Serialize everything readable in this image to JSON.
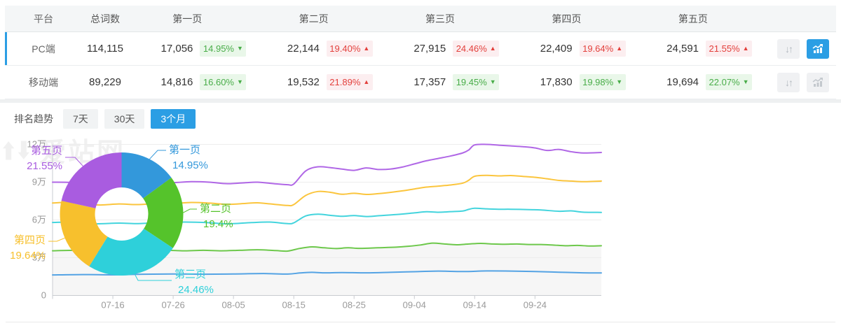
{
  "table": {
    "columns": [
      "平台",
      "总词数",
      "第一页",
      "第二页",
      "第三页",
      "第四页",
      "第五页"
    ],
    "rows": [
      {
        "platform": "PC端",
        "total": "114,115",
        "selected": true,
        "pages": [
          {
            "value": "17,056",
            "pct": "14.95%",
            "dir": "down"
          },
          {
            "value": "22,144",
            "pct": "19.40%",
            "dir": "up"
          },
          {
            "value": "27,915",
            "pct": "24.46%",
            "dir": "up"
          },
          {
            "value": "22,409",
            "pct": "19.64%",
            "dir": "up"
          },
          {
            "value": "24,591",
            "pct": "21.55%",
            "dir": "up"
          }
        ]
      },
      {
        "platform": "移动端",
        "total": "89,229",
        "selected": false,
        "pages": [
          {
            "value": "14,816",
            "pct": "16.60%",
            "dir": "down"
          },
          {
            "value": "19,532",
            "pct": "21.89%",
            "dir": "up"
          },
          {
            "value": "17,357",
            "pct": "19.45%",
            "dir": "down"
          },
          {
            "value": "17,830",
            "pct": "19.98%",
            "dir": "down"
          },
          {
            "value": "19,694",
            "pct": "22.07%",
            "dir": "down"
          }
        ]
      }
    ]
  },
  "trend": {
    "label": "排名趋势",
    "tabs": [
      {
        "label": "7天",
        "active": false
      },
      {
        "label": "30天",
        "active": false
      },
      {
        "label": "3个月",
        "active": true
      }
    ]
  },
  "watermark_text": "爱站网",
  "colors": {
    "accent_blue": "#2b9ee4",
    "badge_down_text": "#49ad49",
    "badge_up_text": "#e3403c",
    "axis": "#c9ccd0",
    "grid": "#ededed",
    "tick_label": "#999999",
    "area_fill": "#f6f6f6"
  },
  "chart_data": [
    {
      "type": "line",
      "title": "排名趋势(3个月)",
      "xlim": [
        0,
        91
      ],
      "xticks": [
        {
          "x": 10,
          "label": "07-16"
        },
        {
          "x": 20,
          "label": "07-26"
        },
        {
          "x": 30,
          "label": "08-05"
        },
        {
          "x": 40,
          "label": "08-15"
        },
        {
          "x": 50,
          "label": "08-25"
        },
        {
          "x": 60,
          "label": "09-04"
        },
        {
          "x": 70,
          "label": "09-14"
        },
        {
          "x": 80,
          "label": "09-24"
        }
      ],
      "ylim": [
        0,
        120000
      ],
      "yticks": [
        {
          "y": 0,
          "label": "0"
        },
        {
          "y": 30000,
          "label": "3万"
        },
        {
          "y": 60000,
          "label": "6万"
        },
        {
          "y": 90000,
          "label": "9万"
        },
        {
          "y": 120000,
          "label": "12万"
        }
      ],
      "grid": true,
      "legend": "none",
      "series": [
        {
          "name": "green-line",
          "color": "#6dc84b",
          "area_fill": "#f6f6f6",
          "points": [
            [
              0,
              35500
            ],
            [
              4,
              35900
            ],
            [
              7,
              34900
            ],
            [
              10,
              35400
            ],
            [
              13,
              35000
            ],
            [
              16,
              35500
            ],
            [
              19,
              35900
            ],
            [
              22,
              35500
            ],
            [
              25,
              35900
            ],
            [
              28,
              35500
            ],
            [
              31,
              35900
            ],
            [
              34,
              36300
            ],
            [
              37,
              35700
            ],
            [
              39,
              35300
            ],
            [
              41,
              37400
            ],
            [
              43,
              38600
            ],
            [
              45,
              37900
            ],
            [
              47,
              37300
            ],
            [
              49,
              37900
            ],
            [
              51,
              37400
            ],
            [
              54,
              37900
            ],
            [
              57,
              38400
            ],
            [
              59,
              39100
            ],
            [
              61,
              40100
            ],
            [
              63,
              41600
            ],
            [
              65,
              40900
            ],
            [
              67,
              40300
            ],
            [
              69,
              40900
            ],
            [
              71,
              41400
            ],
            [
              73,
              40900
            ],
            [
              75,
              40700
            ],
            [
              77,
              40900
            ],
            [
              79,
              40500
            ],
            [
              81,
              40500
            ],
            [
              83,
              40100
            ],
            [
              85,
              39500
            ],
            [
              87,
              39800
            ],
            [
              89,
              39300
            ],
            [
              91,
              39500
            ]
          ]
        },
        {
          "name": "purple-line",
          "color": "#b067e6",
          "points": [
            [
              0,
              90000
            ],
            [
              3,
              89800
            ],
            [
              5,
              88400
            ],
            [
              8,
              87900
            ],
            [
              11,
              88800
            ],
            [
              14,
              88400
            ],
            [
              17,
              89200
            ],
            [
              20,
              89600
            ],
            [
              23,
              90400
            ],
            [
              26,
              90000
            ],
            [
              29,
              88800
            ],
            [
              32,
              89600
            ],
            [
              34,
              90000
            ],
            [
              37,
              88700
            ],
            [
              39,
              88000
            ],
            [
              40,
              88600
            ],
            [
              42,
              99000
            ],
            [
              44,
              102200
            ],
            [
              46,
              101600
            ],
            [
              48,
              100400
            ],
            [
              50,
              99400
            ],
            [
              52,
              101300
            ],
            [
              54,
              100100
            ],
            [
              56,
              100400
            ],
            [
              58,
              102000
            ],
            [
              60,
              104500
            ],
            [
              62,
              107000
            ],
            [
              64,
              108900
            ],
            [
              66,
              110800
            ],
            [
              68,
              113200
            ],
            [
              69,
              115500
            ],
            [
              70,
              119600
            ],
            [
              72,
              120000
            ],
            [
              74,
              119400
            ],
            [
              76,
              118800
            ],
            [
              78,
              118200
            ],
            [
              80,
              117200
            ],
            [
              82,
              115200
            ],
            [
              84,
              116000
            ],
            [
              86,
              114200
            ],
            [
              88,
              113200
            ],
            [
              91,
              113600
            ]
          ]
        },
        {
          "name": "yellow-line",
          "color": "#fbc53d",
          "points": [
            [
              0,
              73500
            ],
            [
              3,
              73900
            ],
            [
              5,
              72600
            ],
            [
              8,
              71900
            ],
            [
              11,
              72700
            ],
            [
              14,
              72200
            ],
            [
              17,
              72900
            ],
            [
              20,
              73100
            ],
            [
              23,
              73900
            ],
            [
              26,
              73400
            ],
            [
              29,
              72400
            ],
            [
              32,
              73100
            ],
            [
              34,
              73600
            ],
            [
              37,
              72300
            ],
            [
              39,
              71500
            ],
            [
              40,
              72200
            ],
            [
              42,
              79500
            ],
            [
              44,
              82600
            ],
            [
              46,
              82000
            ],
            [
              48,
              80400
            ],
            [
              50,
              81200
            ],
            [
              52,
              80300
            ],
            [
              54,
              80900
            ],
            [
              56,
              81900
            ],
            [
              58,
              83100
            ],
            [
              60,
              84600
            ],
            [
              62,
              86100
            ],
            [
              64,
              86900
            ],
            [
              66,
              87800
            ],
            [
              68,
              89200
            ],
            [
              69,
              91500
            ],
            [
              70,
              94700
            ],
            [
              72,
              95400
            ],
            [
              74,
              95000
            ],
            [
              76,
              95300
            ],
            [
              78,
              94600
            ],
            [
              80,
              93900
            ],
            [
              82,
              92700
            ],
            [
              84,
              91400
            ],
            [
              86,
              90900
            ],
            [
              88,
              90400
            ],
            [
              91,
              90900
            ]
          ]
        },
        {
          "name": "cyan-line",
          "color": "#43d4dd",
          "points": [
            [
              0,
              58000
            ],
            [
              4,
              58300
            ],
            [
              7,
              56900
            ],
            [
              11,
              57500
            ],
            [
              14,
              57100
            ],
            [
              18,
              57900
            ],
            [
              22,
              58300
            ],
            [
              26,
              57800
            ],
            [
              29,
              56900
            ],
            [
              33,
              57900
            ],
            [
              36,
              58300
            ],
            [
              39,
              57100
            ],
            [
              40,
              57700
            ],
            [
              42,
              63200
            ],
            [
              44,
              64600
            ],
            [
              46,
              63700
            ],
            [
              48,
              62900
            ],
            [
              50,
              63500
            ],
            [
              52,
              62700
            ],
            [
              54,
              63300
            ],
            [
              57,
              64300
            ],
            [
              60,
              65600
            ],
            [
              62,
              66500
            ],
            [
              64,
              66100
            ],
            [
              66,
              66600
            ],
            [
              68,
              67100
            ],
            [
              69,
              68400
            ],
            [
              70,
              69300
            ],
            [
              72,
              68800
            ],
            [
              74,
              68500
            ],
            [
              76,
              68500
            ],
            [
              79,
              68200
            ],
            [
              81,
              67900
            ],
            [
              84,
              66900
            ],
            [
              86,
              67200
            ],
            [
              88,
              66200
            ],
            [
              91,
              66000
            ]
          ]
        },
        {
          "name": "blue-line",
          "color": "#54a3e4",
          "points": [
            [
              0,
              16300
            ],
            [
              5,
              16600
            ],
            [
              10,
              16400
            ],
            [
              15,
              16900
            ],
            [
              20,
              17100
            ],
            [
              25,
              16900
            ],
            [
              30,
              17100
            ],
            [
              35,
              17400
            ],
            [
              39,
              17000
            ],
            [
              41,
              17900
            ],
            [
              43,
              18400
            ],
            [
              45,
              18000
            ],
            [
              48,
              18200
            ],
            [
              52,
              18000
            ],
            [
              56,
              18400
            ],
            [
              60,
              18900
            ],
            [
              64,
              19400
            ],
            [
              68,
              19000
            ],
            [
              72,
              19500
            ],
            [
              76,
              19400
            ],
            [
              80,
              19000
            ],
            [
              84,
              18500
            ],
            [
              88,
              18000
            ],
            [
              91,
              17900
            ]
          ]
        }
      ]
    },
    {
      "type": "pie",
      "donut": true,
      "legend_position": "callout-labels",
      "segments": [
        {
          "label": "第一页",
          "value": 14.95,
          "display": "14.95%",
          "color": "#3398db"
        },
        {
          "label": "第二页",
          "value": 19.4,
          "display": "19.4%",
          "color": "#55c32b"
        },
        {
          "label": "第三页",
          "value": 24.46,
          "display": "24.46%",
          "color": "#2ed0da"
        },
        {
          "label": "第四页",
          "value": 19.64,
          "display": "19.64%",
          "color": "#f7c02d"
        },
        {
          "label": "第五页",
          "value": 21.55,
          "display": "21.55%",
          "color": "#a95ce0"
        }
      ]
    }
  ]
}
